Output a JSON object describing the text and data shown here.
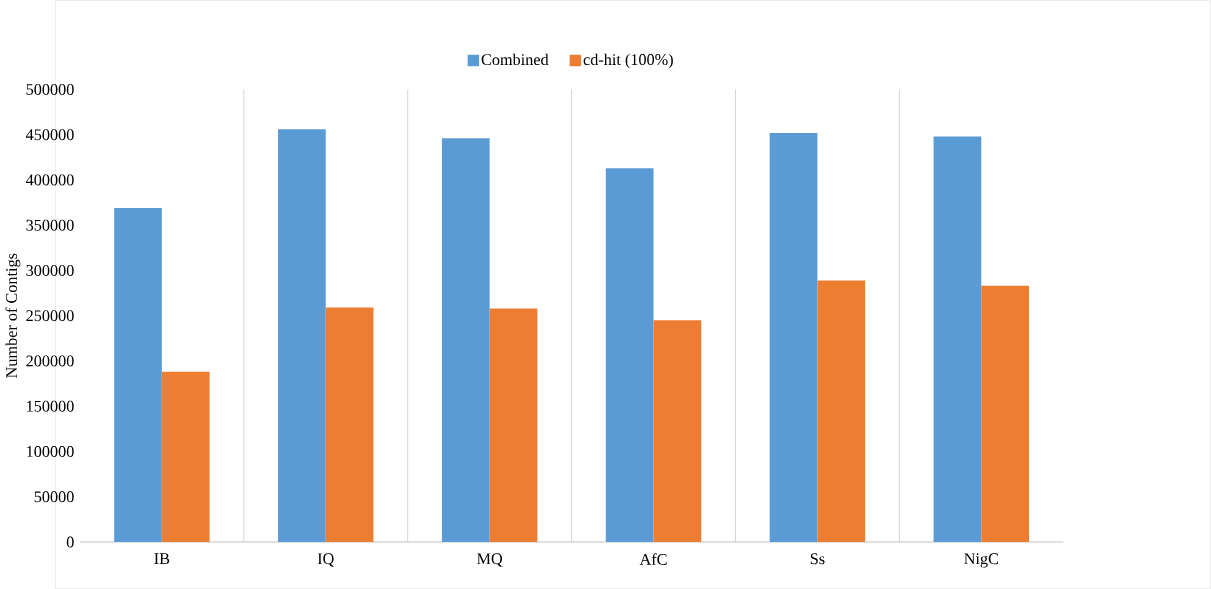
{
  "chart_data": {
    "type": "bar",
    "ylabel": "Number of Contigs",
    "categories": [
      "IB",
      "IQ",
      "MQ",
      "AfC",
      "Ss",
      "NigC"
    ],
    "series": [
      {
        "name": "Combined",
        "color": "#5b9bd5",
        "values": [
          369000,
          456000,
          446000,
          413000,
          452000,
          448000
        ]
      },
      {
        "name": "cd-hit (100%)",
        "color": "#ed7d31",
        "values": [
          188000,
          259000,
          258000,
          245000,
          289000,
          283000
        ]
      }
    ],
    "ylim": [
      0,
      500000
    ],
    "yticks": [
      0,
      50000,
      100000,
      150000,
      200000,
      250000,
      300000,
      350000,
      400000,
      450000,
      500000
    ],
    "grid": "x",
    "legend": "top"
  }
}
